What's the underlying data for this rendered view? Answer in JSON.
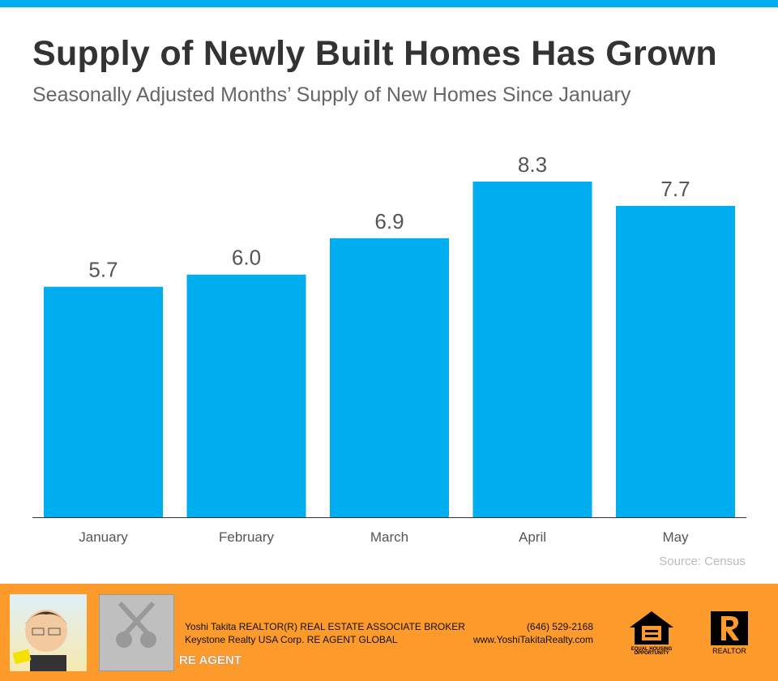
{
  "header": {
    "title": "Supply of Newly Built Homes Has Grown",
    "subtitle": "Seasonally Adjusted Months’ Supply of New Homes Since January"
  },
  "chart_data": {
    "type": "bar",
    "title": "Supply of Newly Built Homes Has Grown",
    "subtitle": "Seasonally Adjusted Months’ Supply of New Homes Since January",
    "categories": [
      "January",
      "February",
      "March",
      "April",
      "May"
    ],
    "values": [
      5.7,
      6.0,
      6.9,
      8.3,
      7.7
    ],
    "labels": [
      "5.7",
      "6.0",
      "6.9",
      "8.3",
      "7.7"
    ],
    "ylim": [
      0,
      8.3
    ],
    "grid": false,
    "bar_color": "#00aeef",
    "source": "Source: Census"
  },
  "footer": {
    "line1": "Yoshi Takita REALTOR(R) REAL ESTATE ASSOCIATE BROKER",
    "line2": "Keystone Realty USA Corp.  RE AGENT GLOBAL",
    "phone": "(646) 529-2168",
    "website": "www.YoshiTakitaRealty.com",
    "reagent_logo": "RE AGENT",
    "eho_logo": "EQUAL HOUSING OPPORTUNITY",
    "realtor_logo": "REALTOR"
  }
}
